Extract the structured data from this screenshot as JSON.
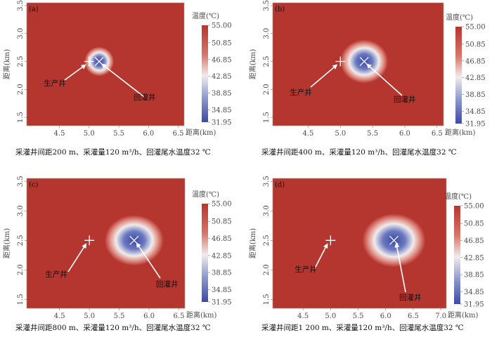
{
  "colors": {
    "hot": "#b5362f",
    "mid": "#f0ecec",
    "cold": "#3c4aa6",
    "marker": "#ffffff",
    "frame": "#9a9a9a"
  },
  "chart_data": [
    {
      "type": "heatmap",
      "panel_label": "(a)",
      "ylabel": "距离(km)",
      "xlabel": "距离(km)",
      "xticks": [
        "4.5",
        "5.0",
        "5.5",
        "6.0",
        "6.5"
      ],
      "yticks": [
        "1.5",
        "2.0",
        "2.5",
        "3.0",
        "3.5"
      ],
      "xlim": [
        3.95,
        6.6
      ],
      "ylim": [
        1.35,
        3.55
      ],
      "colorbar": {
        "title": "温度(℃)",
        "min": 31.95,
        "max": 55.0,
        "ticks": [
          "55.00",
          "50.85",
          "46.85",
          "42.85",
          "38.85",
          "34.85",
          "31.95"
        ]
      },
      "production_well": {
        "label": "生产井",
        "x": 5.0,
        "y": 2.5
      },
      "injection_well": {
        "label": "回灌井",
        "x": 5.17,
        "y": 2.5
      },
      "caption": "采灌井间距200 m、采灌量120 m³/h、回灌尾水温度32 ℃"
    },
    {
      "type": "heatmap",
      "panel_label": "(b)",
      "ylabel": "距离(km)",
      "xlabel": "距离(km)",
      "xticks": [
        "4.5",
        "5.0",
        "5.5",
        "6.0",
        "6.5"
      ],
      "yticks": [
        "1.5",
        "2.0",
        "2.5",
        "3.0",
        "3.5"
      ],
      "xlim": [
        3.95,
        6.6
      ],
      "ylim": [
        1.35,
        3.55
      ],
      "colorbar": {
        "title": "温度(℃)",
        "min": 31.95,
        "max": 55.0,
        "ticks": [
          "55.00",
          "50.85",
          "46.85",
          "42.85",
          "38.85",
          "34.85",
          "31.95"
        ]
      },
      "production_well": {
        "label": "生产井",
        "x": 5.0,
        "y": 2.5
      },
      "injection_well": {
        "label": "回灌井",
        "x": 5.37,
        "y": 2.5
      },
      "caption": "采灌井间距400 m、采灌量120 m³/h、回灌尾水温度32 ℃"
    },
    {
      "type": "heatmap",
      "panel_label": "(c)",
      "ylabel": "距离(km)",
      "xlabel": "距离(km)",
      "xticks": [
        "4.5",
        "5.0",
        "5.5",
        "6.0",
        "6.5"
      ],
      "yticks": [
        "1.5",
        "2.0",
        "2.5",
        "3.0",
        "3.5"
      ],
      "xlim": [
        3.95,
        6.6
      ],
      "ylim": [
        1.35,
        3.55
      ],
      "colorbar": {
        "title": "温度(℃)",
        "min": 31.95,
        "max": 55.0,
        "ticks": [
          "55.00",
          "50.85",
          "46.85",
          "42.85",
          "38.85",
          "34.85",
          "31.95"
        ]
      },
      "production_well": {
        "label": "生产井",
        "x": 5.0,
        "y": 2.5
      },
      "injection_well": {
        "label": "回灌井",
        "x": 5.75,
        "y": 2.5
      },
      "caption": "采灌井间距800 m、采灌量120 m³/h、回灌尾水温度32 ℃"
    },
    {
      "type": "heatmap",
      "panel_label": "(d)",
      "ylabel": "距离(km)",
      "xlabel": "距离(km)",
      "xticks": [
        "4.5",
        "5.0",
        "5.5",
        "6.0",
        "6.5",
        "7.0"
      ],
      "yticks": [
        "1.5",
        "2.0",
        "2.5",
        "3.0",
        "3.5"
      ],
      "xlim": [
        3.95,
        7.1
      ],
      "ylim": [
        1.35,
        3.55
      ],
      "colorbar": {
        "title": "温度(℃)",
        "min": 31.95,
        "max": 55.0,
        "ticks": [
          "55.00",
          "50.85",
          "46.85",
          "42.85",
          "38.85",
          "34.85",
          "31.95"
        ]
      },
      "production_well": {
        "label": "生产井",
        "x": 5.0,
        "y": 2.5
      },
      "injection_well": {
        "label": "回灌井",
        "x": 6.15,
        "y": 2.5
      },
      "caption": "采灌井间距1 200 m、采灌量120 m³/h、回灌尾水温度32 ℃"
    }
  ]
}
